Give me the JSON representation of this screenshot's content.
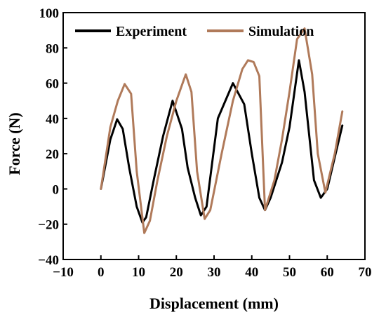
{
  "chart_data": {
    "type": "line",
    "xlabel": "Displacement (mm)",
    "ylabel": "Force (N)",
    "xlim": [
      -10,
      70
    ],
    "ylim": [
      -40,
      100
    ],
    "xticks": [
      -10,
      0,
      10,
      20,
      30,
      40,
      50,
      60,
      70
    ],
    "yticks": [
      -40,
      -20,
      0,
      20,
      40,
      60,
      80,
      100
    ],
    "grid": false,
    "legend_position": "top",
    "series": [
      {
        "name": "Experiment",
        "color": "#000000",
        "x": [
          0,
          2.5,
          4.3,
          5.8,
          7.5,
          9.5,
          11,
          12,
          14,
          16.5,
          19,
          21.5,
          23,
          25,
          26.5,
          28,
          31,
          35,
          38,
          40,
          42,
          43.5,
          45,
          48,
          50,
          52.5,
          54,
          56.5,
          58.3,
          60,
          62,
          64
        ],
        "y": [
          0,
          28,
          39.5,
          34,
          12,
          -10,
          -19,
          -16,
          5,
          30,
          50,
          34,
          12,
          -5,
          -15,
          -10,
          40,
          60,
          48,
          20,
          -5,
          -12,
          -5,
          15,
          35,
          73,
          55,
          5,
          -5,
          0,
          18,
          36
        ]
      },
      {
        "name": "Simulation",
        "color": "#b07a5a",
        "x": [
          0,
          2.5,
          4.5,
          6.3,
          8,
          9.5,
          11.5,
          13,
          15,
          17.5,
          20,
          22.5,
          24,
          25.5,
          27.5,
          29,
          32,
          35,
          37.5,
          39,
          40.5,
          42,
          43.5,
          46,
          48,
          50,
          52,
          54,
          56,
          57.5,
          59.5,
          62,
          64
        ],
        "y": [
          0,
          35,
          50,
          59.5,
          54,
          10,
          -25,
          -18,
          5,
          30,
          50,
          65,
          55,
          10,
          -17,
          -12,
          20,
          50,
          68,
          73,
          72,
          64,
          -12,
          5,
          28,
          55,
          85,
          91,
          65,
          20,
          -2,
          20,
          44
        ]
      }
    ]
  }
}
